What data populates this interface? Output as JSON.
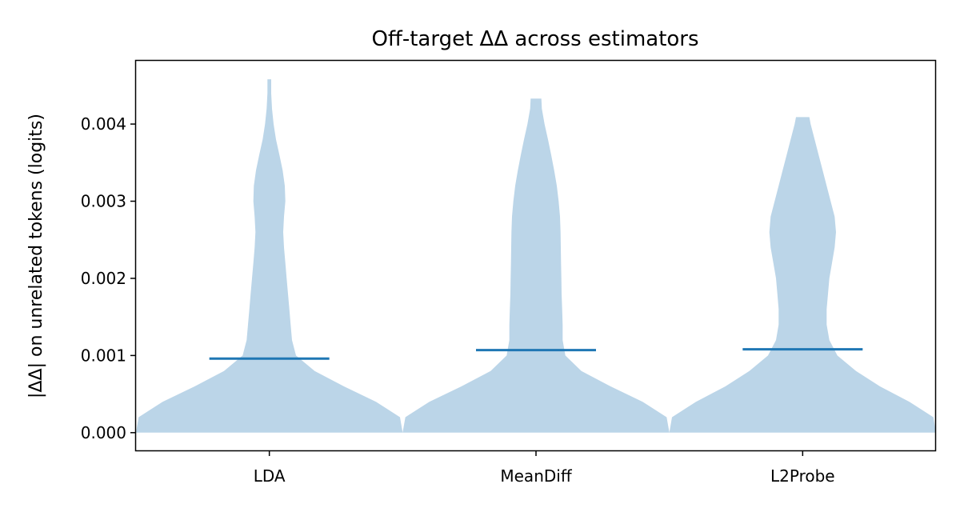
{
  "chart_data": {
    "type": "violin",
    "title": "Off-target ΔΔ across estimators",
    "xlabel": "",
    "ylabel": "|ΔΔ| on unrelated tokens (logits)",
    "categories": [
      "LDA",
      "MeanDiff",
      "L2Probe"
    ],
    "y_ticks": [
      "0.000",
      "0.001",
      "0.002",
      "0.003",
      "0.004"
    ],
    "y_tick_values": [
      0,
      0.001,
      0.002,
      0.003,
      0.004
    ],
    "ylim": [
      -0.00023,
      0.00482
    ],
    "medians": [
      0.00096,
      0.00107,
      0.00108
    ],
    "distributions": [
      {
        "name": "LDA",
        "max": 0.00458,
        "profile": [
          [
            0.0,
            0.5
          ],
          [
            0.0002,
            0.49
          ],
          [
            0.0004,
            0.4
          ],
          [
            0.0006,
            0.28
          ],
          [
            0.0008,
            0.17
          ],
          [
            0.001,
            0.1
          ],
          [
            0.0012,
            0.085
          ],
          [
            0.0014,
            0.08
          ],
          [
            0.0016,
            0.075
          ],
          [
            0.0018,
            0.07
          ],
          [
            0.002,
            0.065
          ],
          [
            0.0022,
            0.06
          ],
          [
            0.0024,
            0.055
          ],
          [
            0.0026,
            0.052
          ],
          [
            0.0028,
            0.055
          ],
          [
            0.003,
            0.06
          ],
          [
            0.0032,
            0.058
          ],
          [
            0.0034,
            0.05
          ],
          [
            0.0036,
            0.038
          ],
          [
            0.0038,
            0.025
          ],
          [
            0.004,
            0.016
          ],
          [
            0.0042,
            0.01
          ],
          [
            0.0044,
            0.007
          ],
          [
            0.00458,
            0.007
          ]
        ]
      },
      {
        "name": "MeanDiff",
        "max": 0.00433,
        "profile": [
          [
            0.0,
            0.5
          ],
          [
            0.0002,
            0.49
          ],
          [
            0.0004,
            0.4
          ],
          [
            0.0006,
            0.28
          ],
          [
            0.0008,
            0.17
          ],
          [
            0.001,
            0.11
          ],
          [
            0.0012,
            0.1
          ],
          [
            0.0014,
            0.1
          ],
          [
            0.0016,
            0.098
          ],
          [
            0.0018,
            0.096
          ],
          [
            0.002,
            0.095
          ],
          [
            0.0022,
            0.094
          ],
          [
            0.0024,
            0.093
          ],
          [
            0.0026,
            0.092
          ],
          [
            0.0028,
            0.09
          ],
          [
            0.003,
            0.085
          ],
          [
            0.0032,
            0.078
          ],
          [
            0.0034,
            0.068
          ],
          [
            0.0036,
            0.057
          ],
          [
            0.0038,
            0.045
          ],
          [
            0.004,
            0.032
          ],
          [
            0.0042,
            0.022
          ],
          [
            0.00433,
            0.02
          ]
        ]
      },
      {
        "name": "L2Probe",
        "max": 0.00409,
        "profile": [
          [
            0.0,
            0.5
          ],
          [
            0.0002,
            0.49
          ],
          [
            0.0004,
            0.4
          ],
          [
            0.0006,
            0.29
          ],
          [
            0.0008,
            0.2
          ],
          [
            0.001,
            0.13
          ],
          [
            0.0012,
            0.1
          ],
          [
            0.0014,
            0.09
          ],
          [
            0.0016,
            0.09
          ],
          [
            0.0018,
            0.095
          ],
          [
            0.002,
            0.1
          ],
          [
            0.0022,
            0.11
          ],
          [
            0.0024,
            0.12
          ],
          [
            0.0026,
            0.125
          ],
          [
            0.0028,
            0.12
          ],
          [
            0.003,
            0.105
          ],
          [
            0.0032,
            0.09
          ],
          [
            0.0034,
            0.075
          ],
          [
            0.0036,
            0.06
          ],
          [
            0.0038,
            0.045
          ],
          [
            0.004,
            0.03
          ],
          [
            0.00409,
            0.025
          ]
        ]
      }
    ],
    "colors": {
      "violin": "#bbd5e8",
      "median": "#1f77b4",
      "axis": "#000000"
    },
    "grid": false,
    "legend": "none"
  }
}
